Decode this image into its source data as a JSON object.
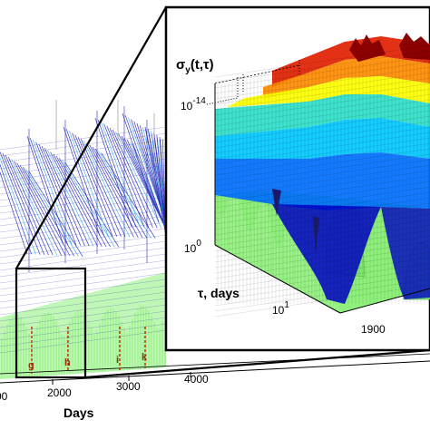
{
  "chart_data": [
    {
      "type": "surface",
      "title": "",
      "xlabel": "Days",
      "ylabel": "",
      "x_ticks": [
        "00",
        "2000",
        "3000",
        "4000"
      ],
      "markers": [
        "g",
        "h",
        "i",
        "k"
      ],
      "grid": false,
      "colors": {
        "mesh": "#2a2ab8",
        "mesh_light": "#39b6e6",
        "floor": "#8ef07a",
        "marker_line": "#cc2200"
      }
    },
    {
      "type": "surface",
      "title": "",
      "zlabel": "σy(t,τ)",
      "zlabel_main": "σ",
      "zlabel_sub": "y",
      "zlabel_args": "(t,τ)",
      "z_ticks": [
        {
          "base": "10",
          "exp": "-14"
        },
        {
          "base": "10",
          "exp": "0"
        }
      ],
      "tau_label": "τ, days",
      "tau_tick": {
        "base": "10",
        "exp": "1"
      },
      "t_tick": "1900",
      "colormap": [
        "#0000c8",
        "#0070ff",
        "#00c8ff",
        "#2ee0c8",
        "#8ef07a",
        "#ffff00",
        "#ff8c00",
        "#e02000",
        "#8b0000"
      ],
      "floor_color": "#8ef07a"
    }
  ]
}
